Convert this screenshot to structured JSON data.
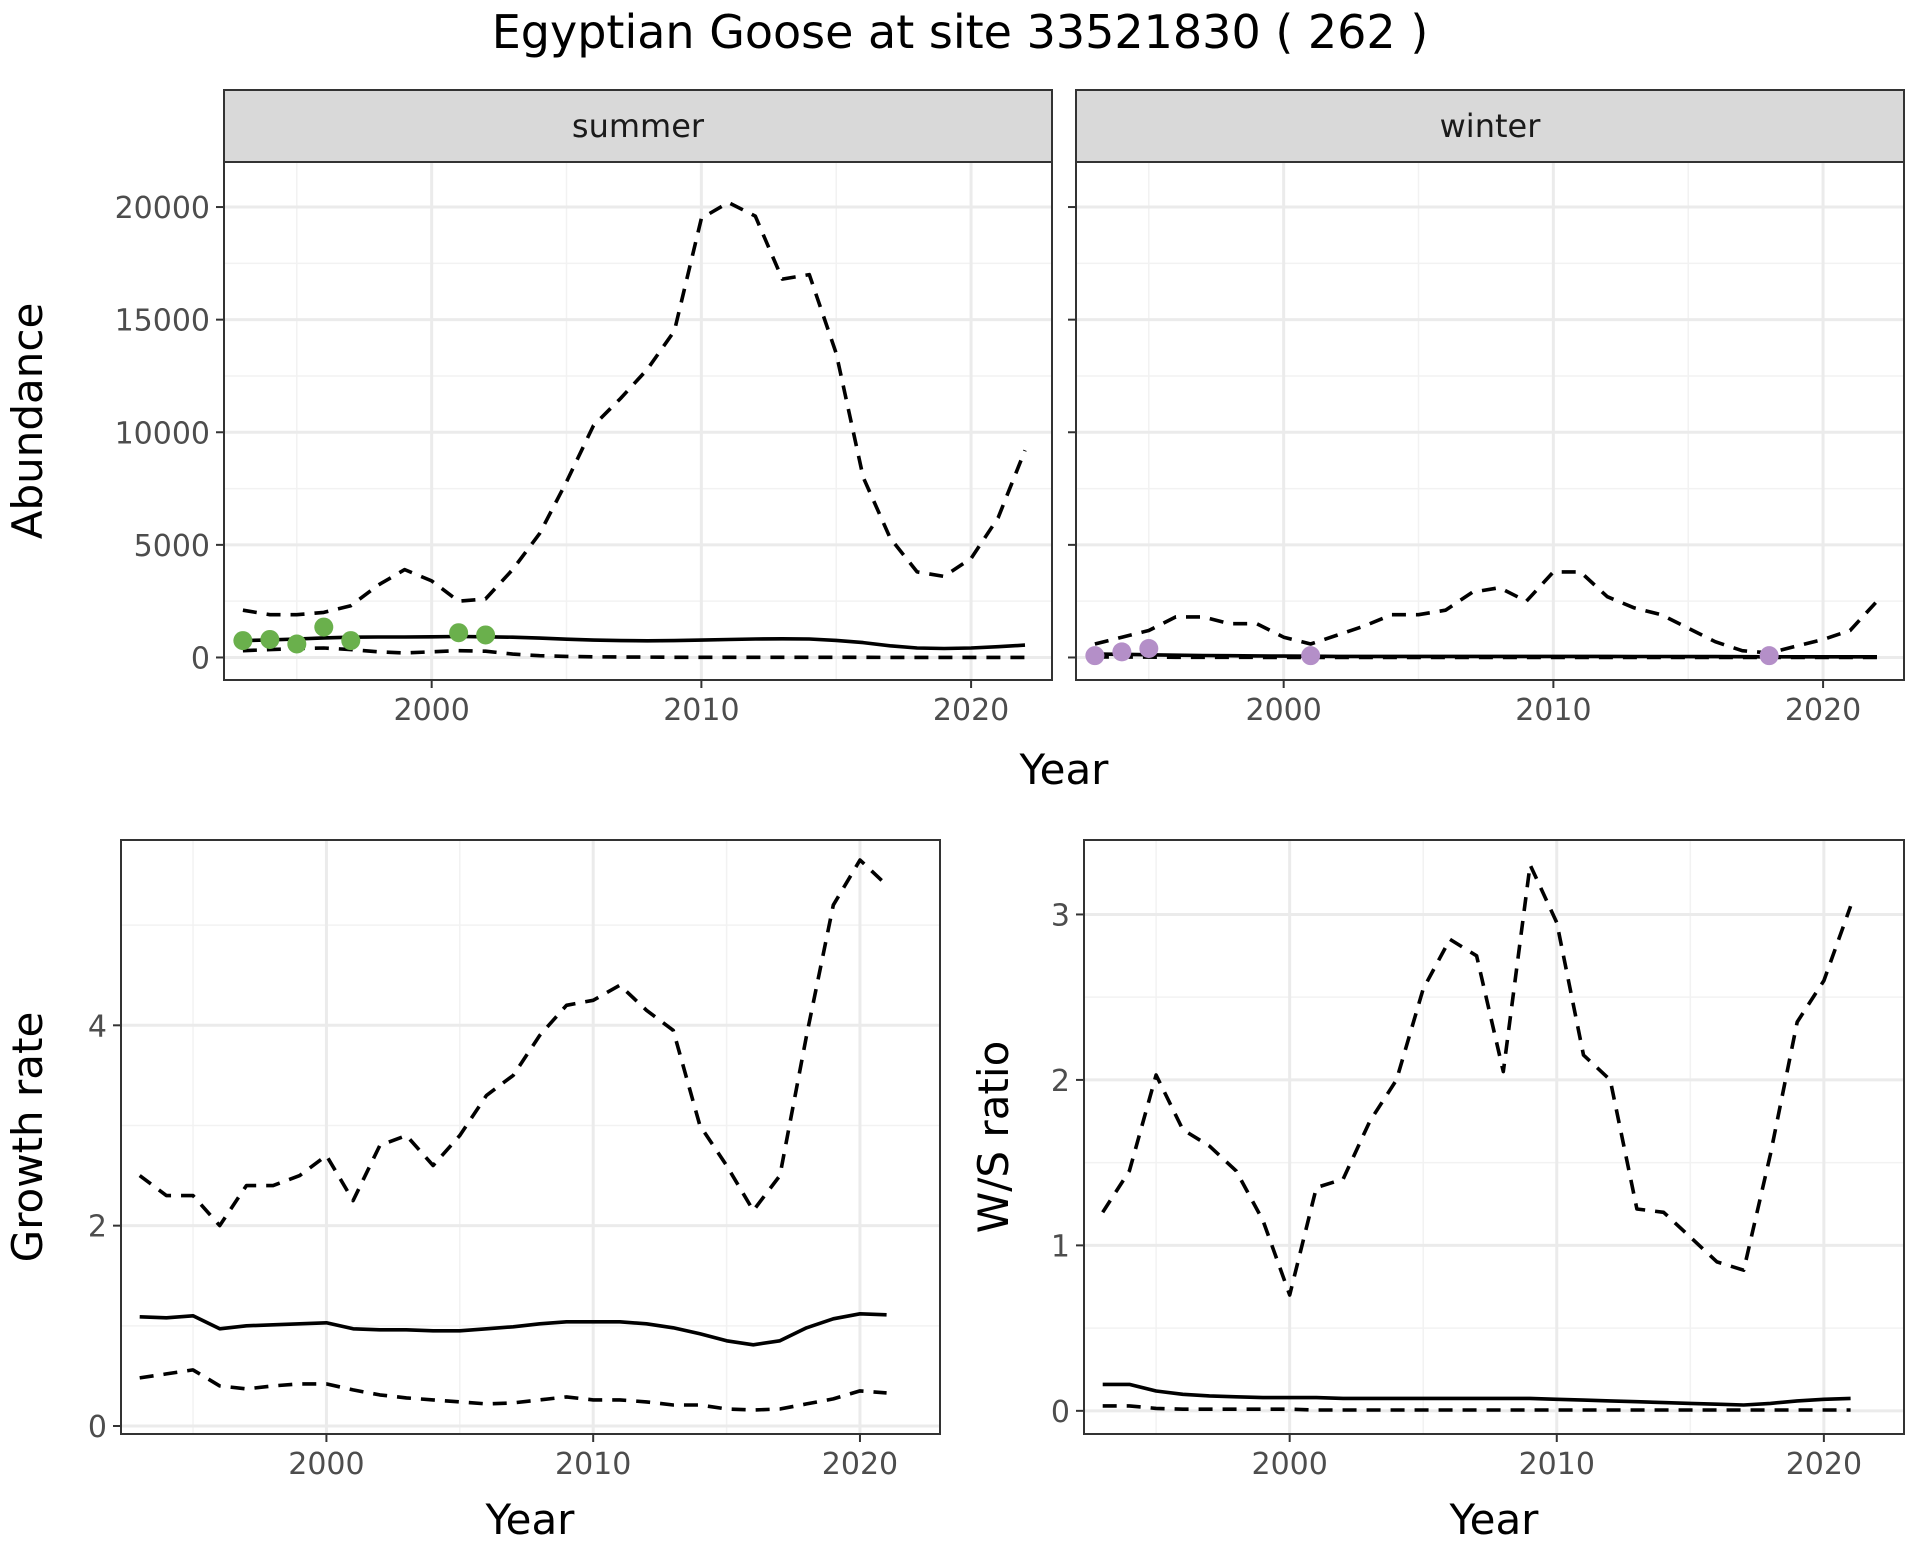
{
  "title": "Egyptian Goose at site 33521830 ( 262 )",
  "colors": {
    "summer_points": "#6ab04c",
    "winter_points": "#b48fc8"
  },
  "chart_data": [
    {
      "type": "line",
      "facet": "summer",
      "strip_label": "summer",
      "xlabel": "Year",
      "ylabel": "Abundance",
      "xlim": [
        1992.3,
        2023.0
      ],
      "ylim": [
        -1000,
        22000
      ],
      "x_ticks": [
        2000,
        2010,
        2020
      ],
      "x_tick_labels": [
        "2000",
        "2010",
        "2020"
      ],
      "y_ticks": [
        0,
        5000,
        10000,
        15000,
        20000
      ],
      "y_tick_labels": [
        "0",
        "5000",
        "10000",
        "15000",
        "20000"
      ],
      "grid": true,
      "series": [
        {
          "style": "solid",
          "x": [
            1993,
            1994,
            1995,
            1996,
            1997,
            1998,
            1999,
            2000,
            2001,
            2002,
            2003,
            2004,
            2005,
            2006,
            2007,
            2008,
            2009,
            2010,
            2011,
            2012,
            2013,
            2014,
            2015,
            2016,
            2017,
            2018,
            2019,
            2020,
            2021,
            2022
          ],
          "values": [
            750,
            780,
            820,
            870,
            900,
            910,
            910,
            920,
            930,
            920,
            900,
            860,
            810,
            770,
            750,
            740,
            750,
            770,
            800,
            820,
            830,
            820,
            760,
            660,
            520,
            420,
            400,
            420,
            480,
            550
          ]
        },
        {
          "style": "dashed",
          "x": [
            1993,
            1994,
            1995,
            1996,
            1997,
            1998,
            1999,
            2000,
            2001,
            2002,
            2003,
            2004,
            2005,
            2006,
            2007,
            2008,
            2009,
            2010,
            2011,
            2012,
            2013,
            2014,
            2015,
            2016,
            2017,
            2018,
            2019,
            2020,
            2021,
            2022
          ],
          "values": [
            2100,
            1900,
            1900,
            2000,
            2300,
            3200,
            3900,
            3400,
            2500,
            2600,
            3900,
            5500,
            7800,
            10300,
            11500,
            12800,
            14500,
            19500,
            20200,
            19600,
            16800,
            17000,
            13500,
            8000,
            5300,
            3800,
            3600,
            4400,
            6200,
            9200
          ]
        },
        {
          "style": "dashed",
          "x": [
            1993,
            1994,
            1995,
            1996,
            1997,
            1998,
            1999,
            2000,
            2001,
            2002,
            2003,
            2004,
            2005,
            2006,
            2007,
            2008,
            2009,
            2010,
            2011,
            2012,
            2013,
            2014,
            2015,
            2016,
            2017,
            2018,
            2019,
            2020,
            2021,
            2022
          ],
          "values": [
            300,
            350,
            400,
            420,
            350,
            250,
            200,
            250,
            300,
            280,
            150,
            80,
            50,
            30,
            20,
            15,
            10,
            10,
            10,
            10,
            10,
            10,
            10,
            10,
            5,
            5,
            5,
            5,
            5,
            5
          ]
        }
      ],
      "points": {
        "x": [
          1993,
          1994,
          1995,
          1996,
          1997,
          2001,
          2002
        ],
        "values": [
          750,
          800,
          600,
          1350,
          750,
          1100,
          1000
        ]
      }
    },
    {
      "type": "line",
      "facet": "winter",
      "strip_label": "winter",
      "xlabel": "Year",
      "ylabel": "Abundance",
      "xlim": [
        1992.3,
        2023.0
      ],
      "ylim": [
        -1000,
        22000
      ],
      "x_ticks": [
        2000,
        2010,
        2020
      ],
      "x_tick_labels": [
        "2000",
        "2010",
        "2020"
      ],
      "y_ticks": [
        0,
        5000,
        10000,
        15000,
        20000
      ],
      "grid": true,
      "series": [
        {
          "style": "solid",
          "x": [
            1993,
            1994,
            1995,
            1996,
            1997,
            1998,
            1999,
            2000,
            2001,
            2002,
            2003,
            2004,
            2005,
            2006,
            2007,
            2008,
            2009,
            2010,
            2011,
            2012,
            2013,
            2014,
            2015,
            2016,
            2017,
            2018,
            2019,
            2020,
            2021,
            2022
          ],
          "values": [
            150,
            140,
            120,
            100,
            90,
            80,
            70,
            60,
            55,
            50,
            50,
            50,
            50,
            50,
            50,
            50,
            50,
            50,
            50,
            50,
            45,
            45,
            40,
            40,
            35,
            30,
            30,
            30,
            30,
            30
          ]
        },
        {
          "style": "dashed",
          "x": [
            1993,
            1994,
            1995,
            1996,
            1997,
            1998,
            1999,
            2000,
            2001,
            2002,
            2003,
            2004,
            2005,
            2006,
            2007,
            2008,
            2009,
            2010,
            2011,
            2012,
            2013,
            2014,
            2015,
            2016,
            2017,
            2018,
            2019,
            2020,
            2021,
            2022
          ],
          "values": [
            600,
            900,
            1200,
            1800,
            1800,
            1500,
            1500,
            900,
            600,
            1000,
            1400,
            1900,
            1900,
            2100,
            2900,
            3100,
            2500,
            3800,
            3800,
            2700,
            2200,
            1900,
            1300,
            700,
            300,
            200,
            500,
            800,
            1200,
            2500
          ]
        },
        {
          "style": "dashed",
          "x": [
            1993,
            1994,
            1995,
            1996,
            1997,
            1998,
            1999,
            2000,
            2001,
            2002,
            2003,
            2004,
            2005,
            2006,
            2007,
            2008,
            2009,
            2010,
            2011,
            2012,
            2013,
            2014,
            2015,
            2016,
            2017,
            2018,
            2019,
            2020,
            2021,
            2022
          ],
          "values": [
            20,
            20,
            15,
            10,
            10,
            10,
            5,
            5,
            5,
            5,
            5,
            5,
            5,
            5,
            5,
            5,
            5,
            5,
            5,
            5,
            5,
            5,
            5,
            5,
            5,
            5,
            5,
            5,
            5,
            5
          ]
        }
      ],
      "points": {
        "x": [
          1993,
          1994,
          1995,
          2001,
          2018
        ],
        "values": [
          80,
          250,
          400,
          80,
          80
        ]
      }
    },
    {
      "type": "line",
      "xlabel": "Year",
      "ylabel": "Growth rate",
      "xlim": [
        1992.3,
        2023.0
      ],
      "ylim": [
        -0.08,
        5.85
      ],
      "x_ticks": [
        2000,
        2010,
        2020
      ],
      "x_tick_labels": [
        "2000",
        "2010",
        "2020"
      ],
      "y_ticks": [
        0,
        2,
        4
      ],
      "y_tick_labels": [
        "0",
        "2",
        "4"
      ],
      "grid": true,
      "series": [
        {
          "style": "solid",
          "x": [
            1993,
            1994,
            1995,
            1996,
            1997,
            1998,
            1999,
            2000,
            2001,
            2002,
            2003,
            2004,
            2005,
            2006,
            2007,
            2008,
            2009,
            2010,
            2011,
            2012,
            2013,
            2014,
            2015,
            2016,
            2017,
            2018,
            2019,
            2020,
            2021
          ],
          "values": [
            1.09,
            1.08,
            1.1,
            0.97,
            1.0,
            1.01,
            1.02,
            1.03,
            0.97,
            0.96,
            0.96,
            0.95,
            0.95,
            0.97,
            0.99,
            1.02,
            1.04,
            1.04,
            1.04,
            1.02,
            0.98,
            0.92,
            0.85,
            0.81,
            0.85,
            0.98,
            1.07,
            1.12,
            1.11
          ]
        },
        {
          "style": "dashed",
          "x": [
            1993,
            1994,
            1995,
            1996,
            1997,
            1998,
            1999,
            2000,
            2001,
            2002,
            2003,
            2004,
            2005,
            2006,
            2007,
            2008,
            2009,
            2010,
            2011,
            2012,
            2013,
            2014,
            2015,
            2016,
            2017,
            2018,
            2019,
            2020,
            2021
          ],
          "values": [
            2.5,
            2.3,
            2.3,
            2.0,
            2.4,
            2.4,
            2.5,
            2.7,
            2.25,
            2.8,
            2.9,
            2.6,
            2.9,
            3.3,
            3.5,
            3.9,
            4.2,
            4.25,
            4.4,
            4.15,
            3.95,
            3.0,
            2.6,
            2.15,
            2.5,
            3.9,
            5.2,
            5.65,
            5.4
          ]
        },
        {
          "style": "dashed",
          "x": [
            1993,
            1994,
            1995,
            1996,
            1997,
            1998,
            1999,
            2000,
            2001,
            2002,
            2003,
            2004,
            2005,
            2006,
            2007,
            2008,
            2009,
            2010,
            2011,
            2012,
            2013,
            2014,
            2015,
            2016,
            2017,
            2018,
            2019,
            2020,
            2021
          ],
          "values": [
            0.48,
            0.52,
            0.56,
            0.4,
            0.37,
            0.4,
            0.42,
            0.42,
            0.36,
            0.31,
            0.28,
            0.26,
            0.24,
            0.22,
            0.23,
            0.26,
            0.29,
            0.26,
            0.26,
            0.24,
            0.21,
            0.21,
            0.17,
            0.16,
            0.17,
            0.22,
            0.27,
            0.35,
            0.33
          ]
        }
      ]
    },
    {
      "type": "line",
      "xlabel": "Year",
      "ylabel": "W/S ratio",
      "xlim": [
        1992.3,
        2023.0
      ],
      "ylim": [
        -0.14,
        3.45
      ],
      "x_ticks": [
        2000,
        2010,
        2020
      ],
      "x_tick_labels": [
        "2000",
        "2010",
        "2020"
      ],
      "y_ticks": [
        0,
        1,
        2,
        3
      ],
      "y_tick_labels": [
        "0",
        "1",
        "2",
        "3"
      ],
      "grid": true,
      "series": [
        {
          "style": "solid",
          "x": [
            1993,
            1994,
            1995,
            1996,
            1997,
            1998,
            1999,
            2000,
            2001,
            2002,
            2003,
            2004,
            2005,
            2006,
            2007,
            2008,
            2009,
            2010,
            2011,
            2012,
            2013,
            2014,
            2015,
            2016,
            2017,
            2018,
            2019,
            2020,
            2021
          ],
          "values": [
            0.16,
            0.16,
            0.12,
            0.1,
            0.09,
            0.085,
            0.08,
            0.08,
            0.08,
            0.075,
            0.075,
            0.075,
            0.075,
            0.075,
            0.075,
            0.075,
            0.075,
            0.07,
            0.065,
            0.06,
            0.055,
            0.05,
            0.045,
            0.04,
            0.035,
            0.045,
            0.06,
            0.07,
            0.075
          ]
        },
        {
          "style": "dashed",
          "x": [
            1993,
            1994,
            1995,
            1996,
            1997,
            1998,
            1999,
            2000,
            2001,
            2002,
            2003,
            2004,
            2005,
            2006,
            2007,
            2008,
            2009,
            2010,
            2011,
            2012,
            2013,
            2014,
            2015,
            2016,
            2017,
            2018,
            2019,
            2020,
            2021
          ],
          "values": [
            1.2,
            1.45,
            2.03,
            1.7,
            1.6,
            1.45,
            1.15,
            0.7,
            1.35,
            1.4,
            1.75,
            2.0,
            2.55,
            2.85,
            2.75,
            2.05,
            3.3,
            2.95,
            2.15,
            2.0,
            1.22,
            1.2,
            1.05,
            0.9,
            0.85,
            1.55,
            2.35,
            2.6,
            3.05
          ]
        },
        {
          "style": "dashed",
          "x": [
            1993,
            1994,
            1995,
            1996,
            1997,
            1998,
            1999,
            2000,
            2001,
            2002,
            2003,
            2004,
            2005,
            2006,
            2007,
            2008,
            2009,
            2010,
            2011,
            2012,
            2013,
            2014,
            2015,
            2016,
            2017,
            2018,
            2019,
            2020,
            2021
          ],
          "values": [
            0.03,
            0.03,
            0.015,
            0.01,
            0.01,
            0.01,
            0.01,
            0.01,
            0.005,
            0.005,
            0.005,
            0.005,
            0.005,
            0.005,
            0.005,
            0.005,
            0.005,
            0.005,
            0.005,
            0.005,
            0.005,
            0.005,
            0.005,
            0.005,
            0.005,
            0.005,
            0.005,
            0.005,
            0.005
          ]
        }
      ]
    }
  ]
}
